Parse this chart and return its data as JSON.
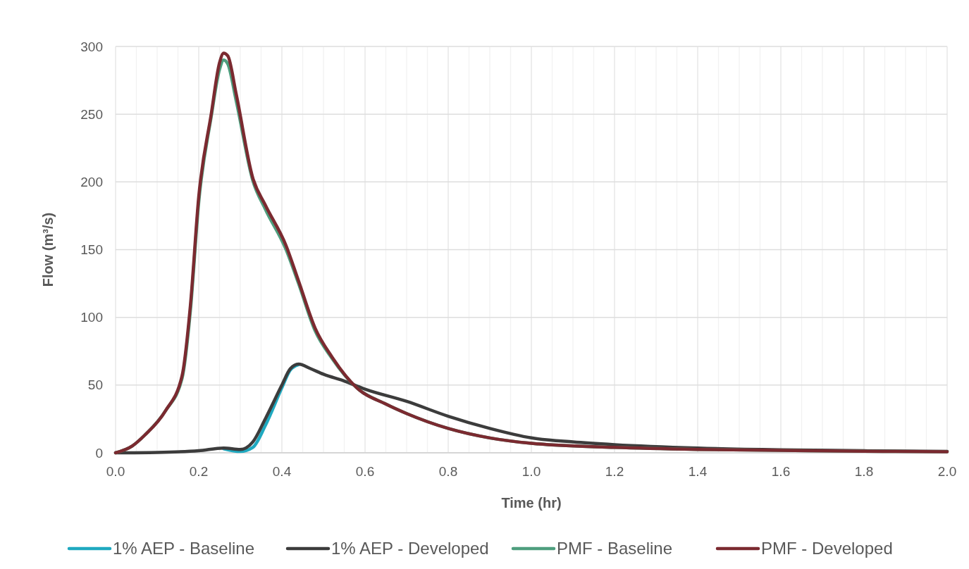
{
  "chart_data": {
    "type": "line",
    "xlabel": "Time (hr)",
    "ylabel": "Flow (m³/s)",
    "xlim": [
      0,
      2
    ],
    "xticks": [
      {
        "value": 0,
        "label": "0.0"
      },
      {
        "value": 0.05,
        "label": null
      },
      {
        "value": 0.1,
        "label": null
      },
      {
        "value": 0.15,
        "label": null
      },
      {
        "value": 0.2,
        "label": "0.2"
      },
      {
        "value": 0.25,
        "label": null
      },
      {
        "value": 0.3,
        "label": null
      },
      {
        "value": 0.35,
        "label": null
      },
      {
        "value": 0.4,
        "label": "0.4"
      },
      {
        "value": 0.45,
        "label": null
      },
      {
        "value": 0.5,
        "label": null
      },
      {
        "value": 0.55,
        "label": null
      },
      {
        "value": 0.6,
        "label": "0.6"
      },
      {
        "value": 0.65,
        "label": null
      },
      {
        "value": 0.7,
        "label": null
      },
      {
        "value": 0.75,
        "label": null
      },
      {
        "value": 0.8,
        "label": "0.8"
      },
      {
        "value": 0.85,
        "label": null
      },
      {
        "value": 0.9,
        "label": null
      },
      {
        "value": 0.95,
        "label": null
      },
      {
        "value": 1,
        "label": "1.0"
      },
      {
        "value": 1.05,
        "label": null
      },
      {
        "value": 1.1,
        "label": null
      },
      {
        "value": 1.15,
        "label": null
      },
      {
        "value": 1.2,
        "label": "1.2"
      },
      {
        "value": 1.25,
        "label": null
      },
      {
        "value": 1.3,
        "label": null
      },
      {
        "value": 1.35,
        "label": null
      },
      {
        "value": 1.4,
        "label": "1.4"
      },
      {
        "value": 1.45,
        "label": null
      },
      {
        "value": 1.5,
        "label": null
      },
      {
        "value": 1.55,
        "label": null
      },
      {
        "value": 1.6,
        "label": "1.6"
      },
      {
        "value": 1.65,
        "label": null
      },
      {
        "value": 1.7,
        "label": null
      },
      {
        "value": 1.75,
        "label": null
      },
      {
        "value": 1.8,
        "label": "1.8"
      },
      {
        "value": 1.85,
        "label": null
      },
      {
        "value": 1.9,
        "label": null
      },
      {
        "value": 1.95,
        "label": null
      },
      {
        "value": 2,
        "label": "2.0"
      }
    ],
    "ylim": [
      0,
      300
    ],
    "yticks": [
      0,
      50,
      100,
      150,
      200,
      250,
      300
    ],
    "grid": true,
    "legend": "bottom",
    "line_style": "solid",
    "marker": "none",
    "series": [
      {
        "name": "1% AEP - Baseline",
        "color": "#1fa9c0",
        "x": [
          0.26,
          0.3,
          0.33,
          0.36,
          0.4,
          0.42,
          0.44
        ],
        "values": [
          3,
          1,
          4,
          20,
          48,
          61,
          65
        ]
      },
      {
        "name": "1% AEP - Developed",
        "color": "#3c3c3c",
        "x": [
          0,
          0.1,
          0.2,
          0.26,
          0.3,
          0.33,
          0.36,
          0.4,
          0.42,
          0.44,
          0.47,
          0.5,
          0.55,
          0.6,
          0.7,
          0.8,
          0.9,
          1.0,
          1.1,
          1.2,
          1.4,
          1.6,
          1.8,
          2.0
        ],
        "values": [
          0,
          0.3,
          1.5,
          3.5,
          2.5,
          8,
          25,
          50,
          62,
          65.5,
          62,
          58,
          53,
          47,
          38,
          27,
          18,
          11,
          8,
          6,
          3.5,
          2.2,
          1.5,
          1
        ]
      },
      {
        "name": "PMF - Baseline",
        "color": "#4e9e7e",
        "x": [
          0,
          0.04,
          0.07,
          0.12,
          0.16,
          0.18,
          0.2,
          0.23,
          0.25,
          0.26,
          0.27,
          0.29,
          0.33,
          0.36,
          0.41,
          0.44,
          0.48,
          0.52,
          0.58,
          0.65,
          0.7,
          0.8,
          0.9,
          1.0,
          1.2,
          1.4,
          1.6,
          1.8,
          2.0
        ],
        "values": [
          0,
          5,
          13,
          31,
          55,
          105,
          185,
          248,
          283,
          290,
          287,
          260,
          201,
          180,
          150,
          125,
          90,
          70,
          48,
          36,
          29,
          18,
          11,
          7,
          4,
          2.5,
          1.8,
          1.2,
          0.8
        ]
      },
      {
        "name": "PMF - Developed",
        "color": "#7b2a30",
        "x": [
          0,
          0.04,
          0.07,
          0.12,
          0.16,
          0.18,
          0.2,
          0.23,
          0.25,
          0.26,
          0.27,
          0.29,
          0.33,
          0.36,
          0.41,
          0.44,
          0.48,
          0.52,
          0.58,
          0.65,
          0.7,
          0.8,
          0.9,
          1.0,
          1.2,
          1.4,
          1.6,
          1.8,
          2.0
        ],
        "values": [
          0,
          5,
          13,
          31,
          57,
          109,
          189,
          250,
          288,
          295,
          293,
          265,
          203,
          183,
          153,
          127,
          92,
          71,
          48,
          36,
          29,
          18,
          11,
          7,
          4,
          2.5,
          1.8,
          1.2,
          0.8
        ]
      }
    ]
  }
}
